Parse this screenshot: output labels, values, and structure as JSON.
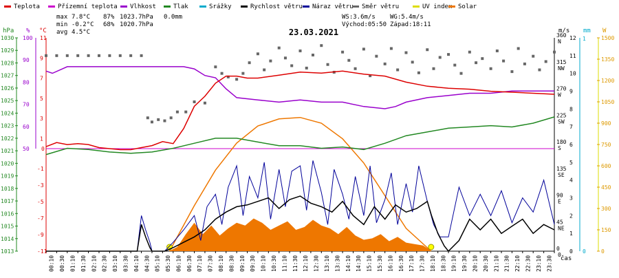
{
  "chart_data": {
    "type": "line",
    "title": "23.03.2021",
    "xlabel": "čas",
    "legend": [
      {
        "name": "Teplota",
        "color": "#dd0000"
      },
      {
        "name": "Přízemní teplota",
        "color": "#cc00cc"
      },
      {
        "name": "Vlhkost",
        "color": "#9900cc"
      },
      {
        "name": "Tlak",
        "color": "#228822"
      },
      {
        "name": "Srážky",
        "color": "#00aacc"
      },
      {
        "name": "Rychlost větru",
        "color": "#000000"
      },
      {
        "name": "Náraz větru",
        "color": "#000099"
      },
      {
        "name": "Směr větru",
        "color": "#666666"
      },
      {
        "name": "UV index",
        "color": "#dddd00"
      },
      {
        "name": "Solar",
        "color": "#ee7700"
      }
    ],
    "stats": {
      "max_label": "max",
      "max_temp": "7.8°C",
      "max_hum": "87%",
      "max_press": "1023.7hPa",
      "max_rain": "0.0mm",
      "min_label": "min",
      "min_temp": "-0.2°C",
      "min_hum": "68%",
      "min_press": "1020.7hPa",
      "avg_label": "avg",
      "avg_temp": "4.5°C",
      "ws": "WS:3.6m/s",
      "wg": "WG:5.4m/s",
      "sunrise": "Východ:05:50",
      "sunset": "Západ:18:11"
    },
    "units": {
      "hpa": "hPa",
      "pct": "%",
      "degc": "°C",
      "ms": "m/s",
      "mm": "mm",
      "w": "W"
    },
    "axes": {
      "hpa_ticks": [
        1030,
        1029,
        1028,
        1027,
        1026,
        1025,
        1024,
        1023,
        1022,
        1021,
        1020,
        1019,
        1018,
        1017,
        1016,
        1015,
        1014,
        1013
      ],
      "hum_ticks": [
        100,
        90,
        80,
        70,
        60,
        50
      ],
      "temp_ticks": [
        11,
        9,
        7,
        5,
        3,
        1,
        -1,
        -3,
        -5,
        -7,
        -9,
        -11
      ],
      "temp_upper_ticks": [
        11,
        9,
        7,
        5,
        3,
        1
      ],
      "temp_zero": "0",
      "dir_ticks": [
        {
          "deg": "360",
          "lab": "N"
        },
        {
          "deg": "315",
          "lab": "NW"
        },
        {
          "deg": "270",
          "lab": "W"
        },
        {
          "deg": "225",
          "lab": "SW"
        },
        {
          "deg": "180",
          "lab": "S"
        },
        {
          "deg": "135",
          "lab": "SE"
        },
        {
          "deg": "90",
          "lab": "E"
        },
        {
          "deg": "45",
          "lab": "NE"
        },
        {
          "deg": "0",
          "lab": "0"
        }
      ],
      "ms_ticks": [
        12,
        11,
        10,
        9,
        8,
        7,
        6,
        5,
        4,
        3,
        2,
        1,
        0
      ],
      "mm_ticks": [
        1,
        0
      ],
      "w_ticks": [
        1500,
        1350,
        1200,
        1050,
        900,
        750,
        600,
        450,
        300,
        150,
        0
      ],
      "time_labels": [
        "00:10",
        "00:30",
        "01:10",
        "01:30",
        "02:10",
        "02:30",
        "03:10",
        "03:30",
        "04:10",
        "04:30",
        "05:10",
        "05:30",
        "06:10",
        "06:30",
        "07:10",
        "07:30",
        "08:10",
        "08:30",
        "09:10",
        "09:30",
        "10:10",
        "10:30",
        "11:10",
        "11:30",
        "12:10",
        "12:30",
        "13:10",
        "13:30",
        "14:10",
        "14:30",
        "15:10",
        "15:30",
        "16:10",
        "16:30",
        "17:10",
        "17:30",
        "18:10",
        "18:30",
        "19:10",
        "19:30",
        "20:10",
        "20:30",
        "21:10",
        "21:30",
        "22:10",
        "22:30",
        "23:10",
        "23:30"
      ]
    },
    "series": {
      "temperature": {
        "name": "Teplota",
        "unit": "°C",
        "x": [
          0,
          0.5,
          1,
          1.5,
          2,
          2.5,
          3,
          3.5,
          4,
          4.5,
          5,
          5.5,
          6,
          6.5,
          7,
          7.5,
          8,
          8.5,
          9,
          9.5,
          10,
          11,
          12,
          13,
          14,
          15,
          16,
          17,
          18,
          19,
          20,
          21,
          22,
          23,
          24
        ],
        "y": [
          0.2,
          0.6,
          0.4,
          0.5,
          0.4,
          0.1,
          0.0,
          -0.1,
          -0.1,
          0.1,
          0.3,
          0.7,
          0.5,
          2.0,
          4.2,
          5.2,
          6.5,
          7.2,
          7.2,
          7.0,
          7.0,
          7.3,
          7.6,
          7.5,
          7.7,
          7.4,
          7.2,
          6.6,
          6.2,
          6.0,
          5.9,
          5.7,
          5.6,
          5.5,
          5.4
        ]
      },
      "humidity": {
        "name": "Vlhkost",
        "unit": "%",
        "x": [
          0,
          0.3,
          1,
          2,
          3,
          4,
          5,
          5.5,
          6,
          6.5,
          7,
          7.5,
          8,
          8.5,
          9,
          10,
          11,
          12,
          13,
          14,
          15,
          16,
          16.5,
          17,
          18,
          19,
          20,
          21,
          22,
          23,
          24
        ],
        "y": [
          85,
          84,
          87,
          87,
          87,
          87,
          87,
          87,
          87,
          87,
          86,
          83,
          82,
          77,
          73,
          72,
          71,
          72,
          71,
          71,
          69,
          68,
          69,
          71,
          73,
          74,
          75,
          75,
          76,
          76,
          76
        ]
      },
      "pressure": {
        "name": "Tlak",
        "unit": "hPa",
        "x": [
          0,
          1,
          2,
          3,
          4,
          5,
          6,
          7,
          8,
          9,
          10,
          11,
          12,
          13,
          14,
          15,
          16,
          17,
          18,
          19,
          20,
          21,
          22,
          23,
          24
        ],
        "y": [
          1020.7,
          1021.2,
          1021.1,
          1020.9,
          1020.8,
          1020.9,
          1021.2,
          1021.6,
          1022.0,
          1022.0,
          1021.7,
          1021.4,
          1021.4,
          1021.2,
          1021.3,
          1021.1,
          1021.6,
          1022.2,
          1022.5,
          1022.8,
          1022.9,
          1023.0,
          1022.9,
          1023.2,
          1023.7
        ]
      },
      "ground_temp": {
        "name": "Přízemní teplota",
        "unit": "°C",
        "x": [
          0,
          24
        ],
        "y": [
          0,
          0
        ]
      },
      "wind_speed": {
        "name": "Rychlost větru",
        "unit": "m/s",
        "x": [
          0,
          4,
          4.3,
          4.5,
          4.7,
          4.9,
          5,
          5.6,
          6,
          6.5,
          7,
          7.5,
          8,
          8.5,
          9,
          9.5,
          10,
          10.5,
          11,
          11.5,
          12,
          12.5,
          13,
          13.5,
          14,
          14.5,
          15,
          15.5,
          16,
          16.5,
          17,
          17.5,
          18,
          18.2,
          18.5,
          18.8,
          19,
          19.5,
          20,
          20.5,
          21,
          21.5,
          22,
          22.5,
          23,
          23.5,
          24
        ],
        "y": [
          0,
          0,
          0,
          1.5,
          0.8,
          0.2,
          0,
          0,
          0.2,
          0.5,
          0.8,
          1.2,
          1.8,
          2.2,
          2.5,
          2.6,
          2.8,
          3.0,
          2.4,
          2.9,
          3.1,
          2.7,
          2.5,
          2.2,
          2.8,
          2.0,
          1.5,
          2.5,
          1.8,
          2.6,
          2.2,
          2.4,
          2.8,
          2.0,
          1.0,
          0.3,
          0,
          0.6,
          1.8,
          1.2,
          1.8,
          1.0,
          1.4,
          1.8,
          1.0,
          1.5,
          1.2
        ]
      },
      "wind_gust": {
        "name": "Náraz větru",
        "unit": "m/s",
        "x": [
          0,
          4,
          4.3,
          4.5,
          4.7,
          4.9,
          5,
          5.6,
          6,
          6.5,
          7,
          7.3,
          7.6,
          8,
          8.3,
          8.6,
          9,
          9.3,
          9.6,
          10,
          10.3,
          10.6,
          11,
          11.3,
          11.6,
          12,
          12.3,
          12.6,
          13,
          13.3,
          13.6,
          14,
          14.3,
          14.6,
          15,
          15.3,
          15.6,
          16,
          16.3,
          16.6,
          17,
          17.3,
          17.6,
          18,
          18.3,
          18.6,
          19,
          19.5,
          20,
          20.5,
          21,
          21.5,
          22,
          22.5,
          23,
          23.5,
          24
        ],
        "y": [
          0,
          0,
          0,
          2.0,
          1.2,
          0.5,
          0,
          0,
          0.5,
          1.2,
          2.0,
          0.6,
          2.5,
          3.2,
          1.5,
          3.6,
          4.8,
          2.0,
          4.2,
          3.0,
          5.0,
          1.8,
          4.6,
          2.5,
          4.5,
          4.8,
          2.3,
          5.1,
          3.3,
          1.5,
          4.6,
          3.2,
          1.8,
          4.2,
          2.0,
          4.8,
          1.6,
          2.9,
          4.4,
          1.5,
          3.8,
          2.2,
          4.8,
          2.8,
          1.5,
          0.8,
          0.8,
          3.6,
          2.0,
          3.2,
          2.0,
          3.4,
          1.6,
          3.0,
          2.2,
          4.0,
          1.5
        ]
      },
      "wind_dir": {
        "name": "Směr větru",
        "unit": "°",
        "x": [
          0,
          0.5,
          1,
          1.5,
          2,
          2.5,
          3,
          3.5,
          4,
          4.5,
          4.8,
          5,
          5.3,
          5.6,
          5.9,
          6.2,
          6.6,
          7,
          7.5,
          8,
          8.3,
          8.6,
          9,
          9.3,
          9.6,
          10,
          10.3,
          10.6,
          11,
          11.3,
          11.6,
          12,
          12.3,
          12.6,
          13,
          13.3,
          13.6,
          14,
          14.3,
          14.6,
          15,
          15.3,
          15.6,
          16,
          16.3,
          16.6,
          17,
          17.3,
          17.6,
          18,
          18.3,
          18.6,
          19,
          19.3,
          19.6,
          20,
          20.3,
          20.6,
          21,
          21.3,
          21.6,
          22,
          22.3,
          22.6,
          23,
          23.3,
          23.6,
          24
        ],
        "y": [
          330,
          330,
          330,
          330,
          330,
          330,
          330,
          330,
          330,
          330,
          225,
          218,
          222,
          220,
          225,
          235,
          235,
          252,
          250,
          311,
          300,
          294,
          290,
          300,
          318,
          333,
          306,
          321,
          343,
          326,
          313,
          338,
          309,
          331,
          347,
          315,
          302,
          336,
          322,
          308,
          341,
          296,
          329,
          316,
          342,
          306,
          335,
          319,
          301,
          340,
          308,
          327,
          332,
          314,
          300,
          336,
          318,
          325,
          308,
          338,
          321,
          303,
          342,
          316,
          329,
          306,
          320,
          336
        ]
      },
      "solar": {
        "name": "Solar",
        "unit": "W",
        "x": [
          5.8,
          6.2,
          6.6,
          7,
          7.4,
          7.8,
          8.2,
          8.6,
          9,
          9.4,
          9.8,
          10.2,
          10.6,
          11,
          11.4,
          11.8,
          12.2,
          12.6,
          13,
          13.4,
          13.8,
          14.2,
          14.6,
          15,
          15.4,
          15.8,
          16.2,
          16.6,
          17,
          17.4,
          17.8,
          18.2
        ],
        "y": [
          0,
          30,
          120,
          200,
          120,
          180,
          110,
          160,
          200,
          180,
          230,
          200,
          150,
          180,
          210,
          150,
          170,
          220,
          180,
          160,
          120,
          170,
          110,
          80,
          90,
          120,
          70,
          100,
          60,
          50,
          40,
          0
        ]
      },
      "solar_theory": {
        "name": "Solar",
        "unit": "W",
        "x": [
          5.83,
          7,
          8,
          9,
          10,
          11,
          12,
          13,
          14,
          15,
          16,
          17,
          18.18
        ],
        "y": [
          0,
          320,
          570,
          760,
          880,
          930,
          940,
          900,
          790,
          620,
          390,
          160,
          0
        ]
      }
    },
    "sun_markers": {
      "sunrise_h": 5.83,
      "sunset_h": 18.18
    },
    "ranges": {
      "x": [
        0,
        24
      ],
      "hpa": [
        1013,
        1030
      ],
      "hum": [
        50,
        100
      ],
      "temp": [
        -11,
        11
      ],
      "ms": [
        0,
        12
      ],
      "w": [
        0,
        1500
      ],
      "dir": [
        0,
        360
      ]
    }
  }
}
